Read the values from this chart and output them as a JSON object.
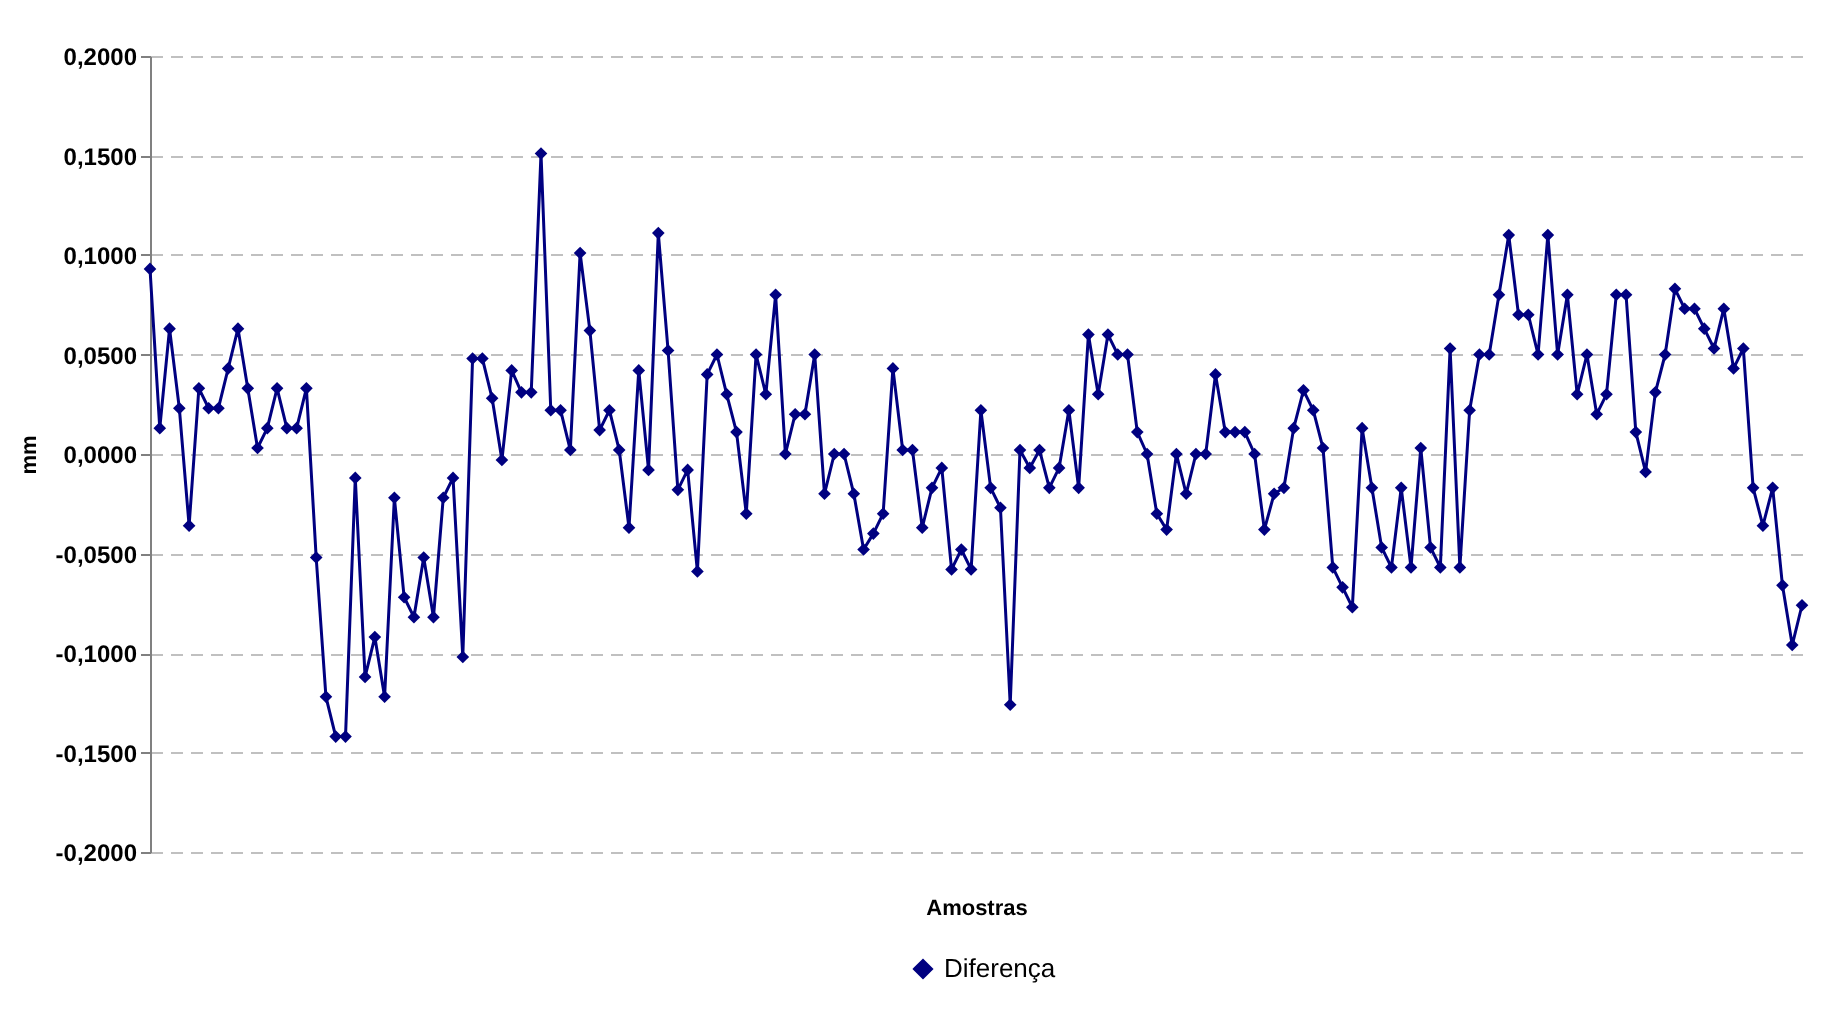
{
  "chart_data": {
    "type": "line",
    "xlabel": "Amostras",
    "ylabel": "mm",
    "categories": [
      null,
      null,
      null,
      null,
      null,
      null,
      null,
      null,
      null,
      null,
      null,
      null,
      null,
      null,
      null,
      null,
      null,
      null,
      null,
      null,
      null,
      null,
      null,
      null,
      null,
      null,
      null,
      null,
      null,
      null,
      null,
      null,
      null,
      null,
      null,
      null,
      null,
      null,
      null,
      null,
      null,
      null,
      null,
      null,
      null,
      null,
      null,
      null,
      null,
      null,
      null,
      null,
      null,
      null,
      null,
      null,
      null,
      null,
      null,
      null,
      null,
      null,
      null,
      null,
      null,
      null,
      null,
      null,
      null,
      null,
      null,
      null,
      null,
      null,
      null,
      null,
      null,
      null,
      null,
      null,
      null,
      null,
      null,
      null,
      null,
      null,
      null,
      null,
      null,
      null,
      null,
      null,
      null,
      null,
      null,
      null,
      null,
      null,
      null,
      null,
      null,
      null,
      null,
      null,
      null,
      null,
      null,
      null,
      null,
      null,
      null,
      null,
      null,
      null,
      null,
      null,
      null,
      null,
      null,
      null,
      null,
      null,
      null,
      null,
      null,
      null,
      null,
      null,
      null,
      null,
      null,
      null,
      null,
      null,
      null,
      null,
      null,
      null,
      null,
      null,
      null,
      null,
      null,
      null,
      null,
      null,
      null,
      null,
      null,
      null,
      null,
      null,
      null,
      null,
      null,
      null,
      null,
      null,
      null,
      null,
      null,
      null,
      null,
      null,
      null,
      null,
      null,
      null,
      null,
      null
    ],
    "series": [
      {
        "name": "Diferença",
        "color": "#000080",
        "values": [
          0.093,
          0.013,
          0.063,
          0.023,
          -0.036,
          0.033,
          0.023,
          0.023,
          0.043,
          0.063,
          0.033,
          0.003,
          0.013,
          0.033,
          0.013,
          0.013,
          0.033,
          -0.052,
          -0.122,
          -0.142,
          -0.142,
          -0.012,
          -0.112,
          -0.092,
          -0.122,
          -0.022,
          -0.072,
          -0.082,
          -0.052,
          -0.082,
          -0.022,
          -0.012,
          -0.102,
          0.048,
          0.048,
          0.028,
          -0.003,
          0.042,
          0.031,
          0.031,
          0.151,
          0.022,
          0.022,
          0.002,
          0.101,
          0.062,
          0.012,
          0.022,
          0.002,
          -0.037,
          0.042,
          -0.008,
          0.111,
          0.052,
          -0.018,
          -0.008,
          -0.059,
          0.04,
          0.05,
          0.03,
          0.011,
          -0.03,
          0.05,
          0.03,
          0.08,
          0.0,
          0.02,
          0.02,
          0.05,
          -0.02,
          0.0,
          0.0,
          -0.02,
          -0.048,
          -0.04,
          -0.03,
          0.043,
          0.002,
          0.002,
          -0.037,
          -0.017,
          -0.007,
          -0.058,
          -0.048,
          -0.058,
          0.022,
          -0.017,
          -0.027,
          -0.126,
          0.002,
          -0.007,
          0.002,
          -0.017,
          -0.007,
          0.022,
          -0.017,
          0.06,
          0.03,
          0.06,
          0.05,
          0.05,
          0.011,
          0.0,
          -0.03,
          -0.038,
          0.0,
          -0.02,
          0.0,
          0.0,
          0.04,
          0.011,
          0.011,
          0.011,
          0.0,
          -0.038,
          -0.02,
          -0.017,
          0.013,
          0.032,
          0.022,
          0.003,
          -0.057,
          -0.067,
          -0.077,
          0.013,
          -0.017,
          -0.047,
          -0.057,
          -0.017,
          -0.057,
          0.003,
          -0.047,
          -0.057,
          0.053,
          -0.057,
          0.022,
          0.05,
          0.05,
          0.08,
          0.11,
          0.07,
          0.07,
          0.05,
          0.11,
          0.05,
          0.08,
          0.03,
          0.05,
          0.02,
          0.03,
          0.08,
          0.08,
          0.011,
          -0.009,
          0.031,
          0.05,
          0.083,
          0.073,
          0.073,
          0.063,
          0.053,
          0.073,
          0.043,
          0.053,
          -0.017,
          -0.036,
          -0.017,
          -0.066,
          -0.096,
          -0.076
        ]
      }
    ],
    "ylim": [
      -0.2,
      0.2
    ],
    "yticks": [
      {
        "value": -0.2,
        "label": "-0,2000"
      },
      {
        "value": -0.15,
        "label": "-0,1500"
      },
      {
        "value": -0.1,
        "label": "-0,1000"
      },
      {
        "value": -0.05,
        "label": "-0,0500"
      },
      {
        "value": 0,
        "label": "0,0000"
      },
      {
        "value": 0.05,
        "label": "0,0500"
      },
      {
        "value": 0.1,
        "label": "0,1000"
      },
      {
        "value": 0.15,
        "label": "0,1500"
      },
      {
        "value": 0.2,
        "label": "0,2000"
      }
    ],
    "grid": "y",
    "legend": "bottom",
    "marker": "diamond",
    "line_style": "solid",
    "tick_labels": "y"
  }
}
